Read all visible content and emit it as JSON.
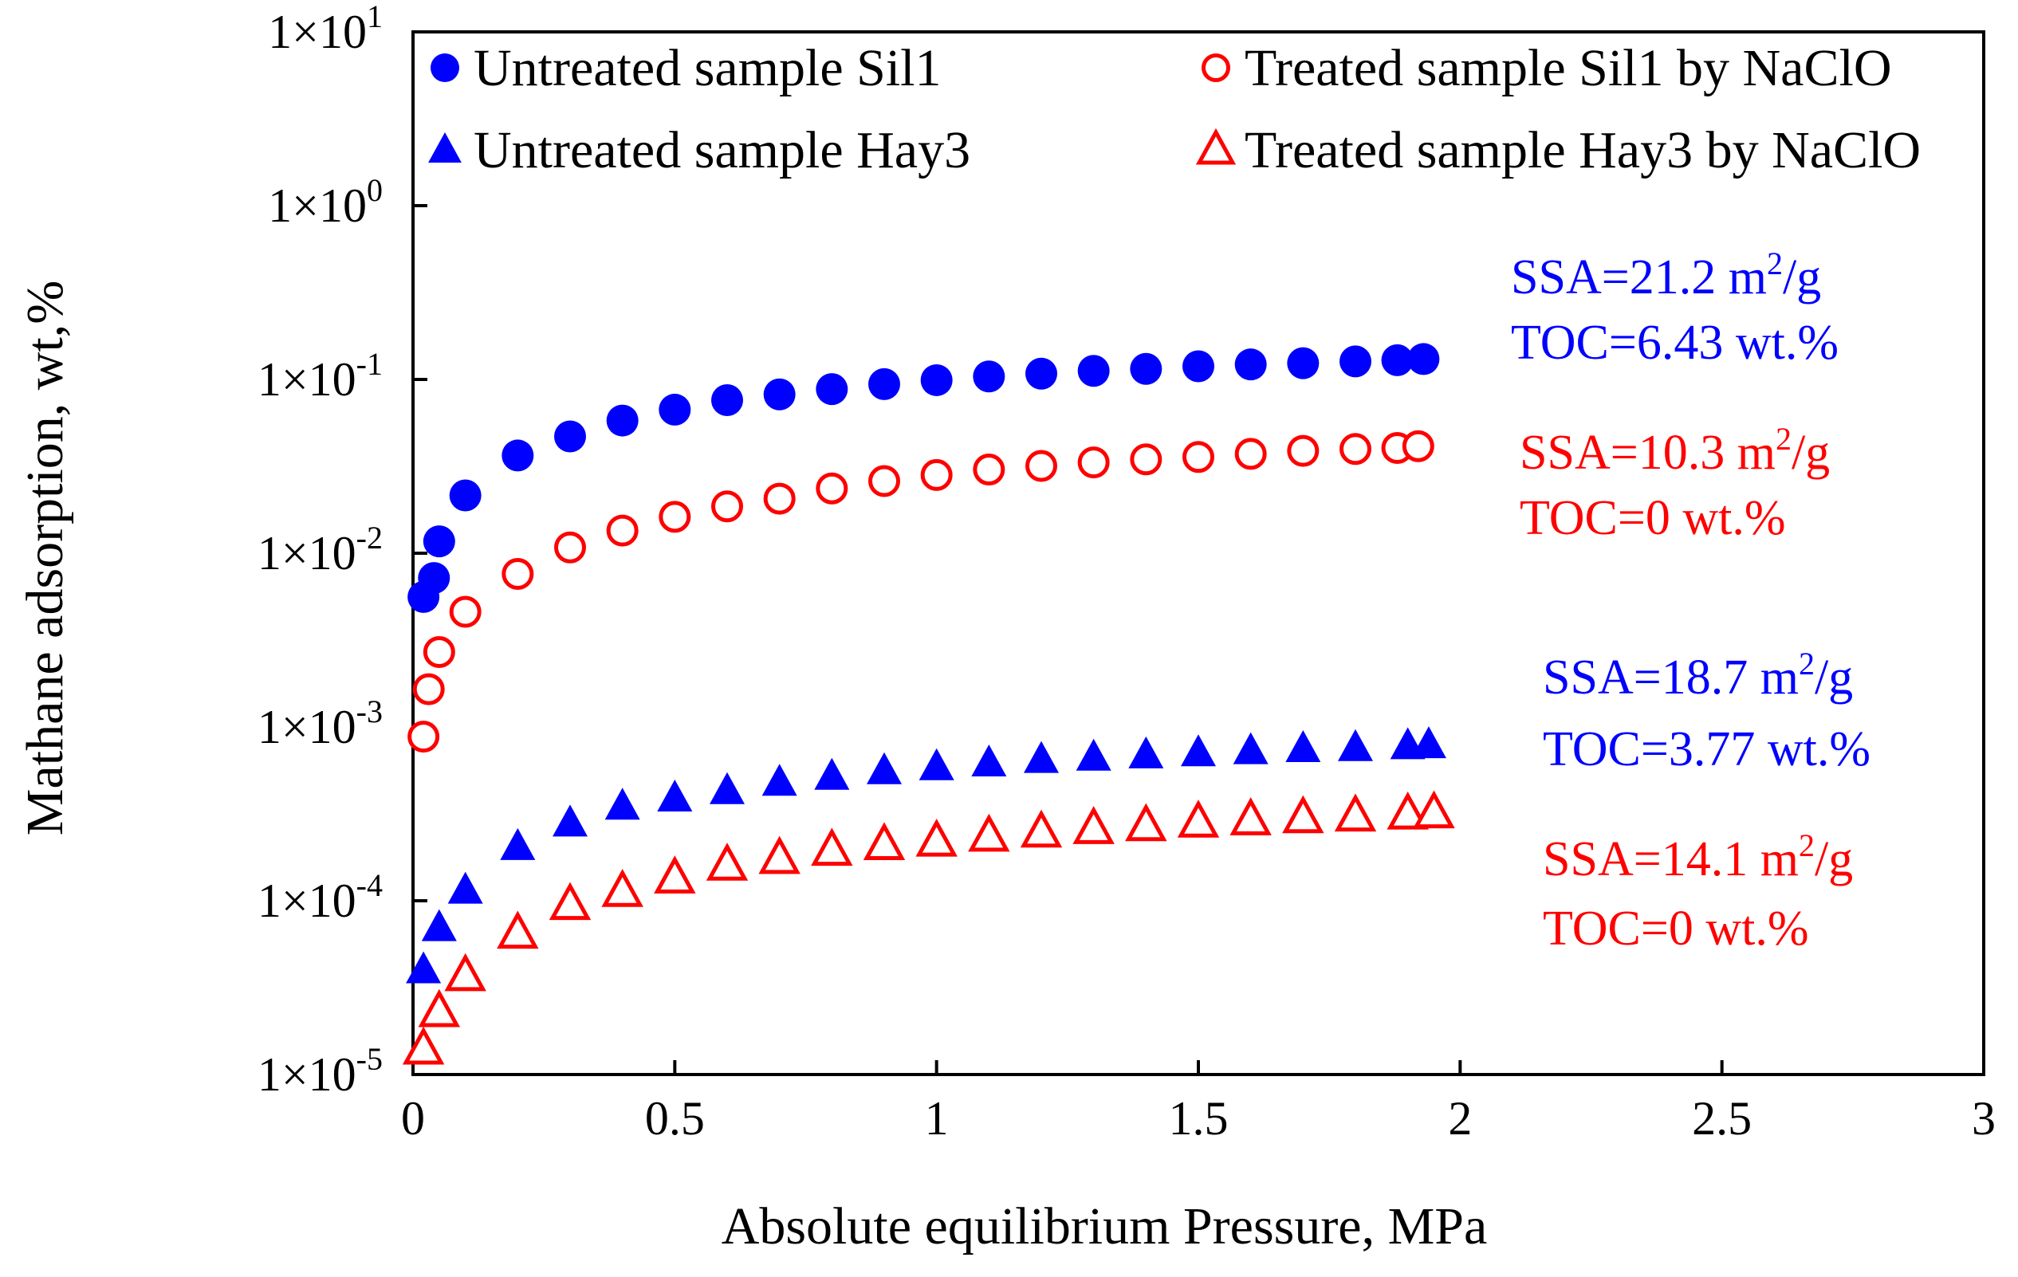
{
  "chart_data": {
    "type": "scatter",
    "title": "",
    "xlabel": "Absolute equilibrium Pressure, MPa",
    "ylabel": "Mathane adsorption, wt,%",
    "xlim": [
      0,
      3
    ],
    "ylim": [
      1e-05,
      10
    ],
    "yscale": "log",
    "grid": false,
    "legend_position": "top",
    "x_ticks": [
      {
        "value": 0,
        "label": "0"
      },
      {
        "value": 0.5,
        "label": "0.5"
      },
      {
        "value": 1,
        "label": "1"
      },
      {
        "value": 1.5,
        "label": "1.5"
      },
      {
        "value": 2,
        "label": "2"
      },
      {
        "value": 2.5,
        "label": "2.5"
      },
      {
        "value": 3,
        "label": "3"
      }
    ],
    "y_ticks": [
      {
        "value": 10,
        "mant": "1×10",
        "exp": "1"
      },
      {
        "value": 1,
        "mant": "1×10",
        "exp": "0"
      },
      {
        "value": 0.1,
        "mant": "1×10",
        "exp": "-1"
      },
      {
        "value": 0.01,
        "mant": "1×10",
        "exp": "-2"
      },
      {
        "value": 0.001,
        "mant": "1×10",
        "exp": "-3"
      },
      {
        "value": 0.0001,
        "mant": "1×10",
        "exp": "-4"
      },
      {
        "value": 1e-05,
        "mant": "1×10",
        "exp": "-5"
      }
    ],
    "series": [
      {
        "name": "Untreated sample Sil1",
        "marker": "circle",
        "filled": true,
        "color": "#0000ff",
        "x": [
          0.02,
          0.04,
          0.05,
          0.1,
          0.2,
          0.3,
          0.4,
          0.5,
          0.6,
          0.7,
          0.8,
          0.9,
          1.0,
          1.1,
          1.2,
          1.3,
          1.4,
          1.5,
          1.6,
          1.7,
          1.8,
          1.88,
          1.93
        ],
        "y": [
          0.0056,
          0.0072,
          0.0117,
          0.0215,
          0.0365,
          0.047,
          0.058,
          0.067,
          0.076,
          0.082,
          0.088,
          0.094,
          0.099,
          0.104,
          0.108,
          0.112,
          0.115,
          0.119,
          0.122,
          0.124,
          0.127,
          0.129,
          0.131
        ]
      },
      {
        "name": "Treated sample Sil1 by NaClO",
        "marker": "circle",
        "filled": false,
        "color": "#ff0000",
        "x": [
          0.02,
          0.03,
          0.05,
          0.1,
          0.2,
          0.3,
          0.4,
          0.5,
          0.6,
          0.7,
          0.8,
          0.9,
          1.0,
          1.1,
          1.2,
          1.3,
          1.4,
          1.5,
          1.6,
          1.7,
          1.8,
          1.88,
          1.92
        ],
        "y": [
          0.00088,
          0.00165,
          0.0027,
          0.0046,
          0.0076,
          0.0108,
          0.0135,
          0.0162,
          0.0186,
          0.0206,
          0.0236,
          0.026,
          0.0282,
          0.0303,
          0.0318,
          0.0333,
          0.0347,
          0.0358,
          0.0373,
          0.0388,
          0.0398,
          0.0403,
          0.0413
        ]
      },
      {
        "name": "Untreated sample Hay3",
        "marker": "triangle",
        "filled": true,
        "color": "#0000ff",
        "x": [
          0.02,
          0.05,
          0.1,
          0.2,
          0.3,
          0.4,
          0.5,
          0.6,
          0.7,
          0.8,
          0.9,
          1.0,
          1.1,
          1.2,
          1.3,
          1.4,
          1.5,
          1.6,
          1.7,
          1.8,
          1.9,
          1.94
        ],
        "y": [
          4e-05,
          7e-05,
          0.000115,
          0.000205,
          0.00028,
          0.00035,
          0.00039,
          0.00043,
          0.00048,
          0.00052,
          0.00056,
          0.00059,
          0.00062,
          0.00065,
          0.00067,
          0.00069,
          0.00071,
          0.00073,
          0.00075,
          0.00076,
          0.00078,
          0.00079
        ]
      },
      {
        "name": "Treated sample Hay3 by NaClO",
        "marker": "triangle",
        "filled": false,
        "color": "#ff0000",
        "x": [
          0.02,
          0.05,
          0.1,
          0.2,
          0.3,
          0.4,
          0.5,
          0.6,
          0.7,
          0.8,
          0.9,
          1.0,
          1.1,
          1.2,
          1.3,
          1.4,
          1.5,
          1.6,
          1.7,
          1.8,
          1.9,
          1.95
        ],
        "y": [
          1.4e-05,
          2.3e-05,
          3.7e-05,
          6.5e-05,
          9.5e-05,
          0.000113,
          0.000135,
          0.00016,
          0.000175,
          0.000195,
          0.00021,
          0.00022,
          0.000235,
          0.000248,
          0.00026,
          0.00027,
          0.000283,
          0.000292,
          0.0003,
          0.000307,
          0.000315,
          0.00032
        ]
      }
    ],
    "annotations": [
      {
        "line1": {
          "pre": "SSA=21.2 m",
          "sup": "2",
          "post": "/g"
        },
        "line2": "TOC=6.43 wt.%",
        "color": "#0000ff"
      },
      {
        "line1": {
          "pre": "SSA=10.3 m",
          "sup": "2",
          "post": "/g"
        },
        "line2": "TOC=0 wt.%",
        "color": "#ff0000"
      },
      {
        "line1": {
          "pre": "SSA=18.7 m",
          "sup": "2",
          "post": "/g"
        },
        "line2": "TOC=3.77 wt.%",
        "color": "#0000ff"
      },
      {
        "line1": {
          "pre": "SSA=14.1 m",
          "sup": "2",
          "post": "/g"
        },
        "line2": "TOC=0 wt.%",
        "color": "#ff0000"
      }
    ]
  }
}
